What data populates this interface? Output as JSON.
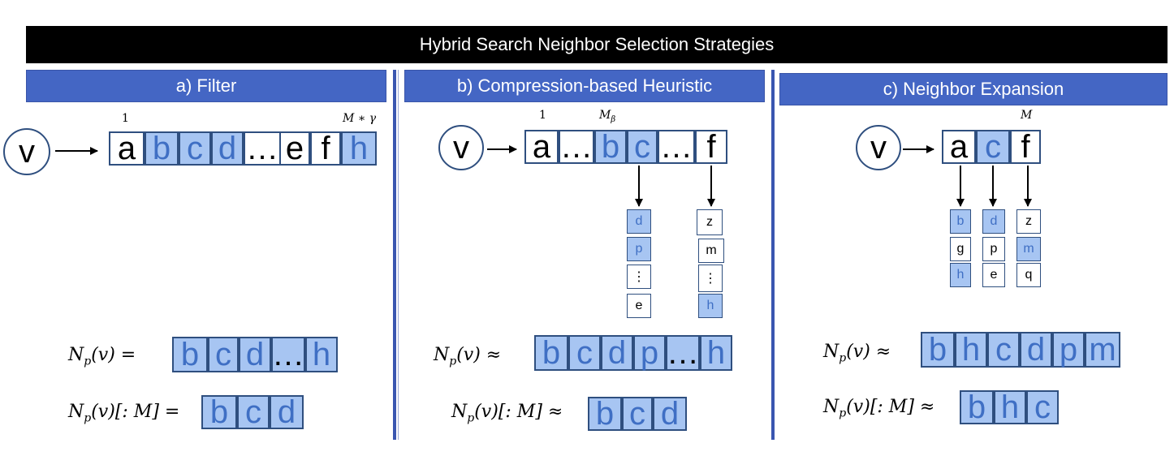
{
  "title": "Hybrid Search Neighbor Selection Strategies",
  "panels": {
    "a": {
      "header": "a) Filter",
      "source": "v",
      "index_left": "1",
      "index_right": "M ∗ γ",
      "list": [
        "a",
        "b",
        "c",
        "d",
        "…",
        "e",
        "f",
        "h"
      ],
      "formula1": "N",
      "formula1_sub": "p",
      "formula1_rest": "(v) =",
      "result1": [
        "b",
        "c",
        "d",
        "…",
        "h"
      ],
      "formula2": "N",
      "formula2_sub": "p",
      "formula2_rest": "(v)[: M] =",
      "result2": [
        "b",
        "c",
        "d"
      ]
    },
    "b": {
      "header": "b) Compression-based Heuristic",
      "source": "v",
      "index_left": "1",
      "index_mb": "M",
      "index_mb_sub": "β",
      "list": [
        "a",
        "…",
        "b",
        "c",
        "…",
        "f"
      ],
      "col_c": [
        "d",
        "p",
        "⋮",
        "e"
      ],
      "col_f": [
        "z",
        "m",
        "⋮",
        "h"
      ],
      "formula1": "N",
      "formula1_sub": "p",
      "formula1_rest": "(v) ≈",
      "result1": [
        "b",
        "c",
        "d",
        "p",
        "…",
        "h"
      ],
      "formula2": "N",
      "formula2_sub": "p",
      "formula2_rest": "(v)[: M] ≈",
      "result2": [
        "b",
        "c",
        "d"
      ]
    },
    "c": {
      "header": "c) Neighbor Expansion",
      "source": "v",
      "index_m": "M",
      "list": [
        "a",
        "c",
        "f"
      ],
      "col_a": [
        "b",
        "g",
        "h"
      ],
      "col_c": [
        "d",
        "p",
        "e"
      ],
      "col_f": [
        "z",
        "m",
        "q"
      ],
      "formula1": "N",
      "formula1_sub": "p",
      "formula1_rest": "(v) ≈",
      "result1": [
        "b",
        "h",
        "c",
        "d",
        "p",
        "m"
      ],
      "formula2": "N",
      "formula2_sub": "p",
      "formula2_rest": "(v)[: M] ≈",
      "result2": [
        "b",
        "h",
        "c"
      ]
    }
  },
  "colors": {
    "highlight": "#a7c5f2",
    "header": "#4466c4",
    "border": "#2f4f7f"
  }
}
